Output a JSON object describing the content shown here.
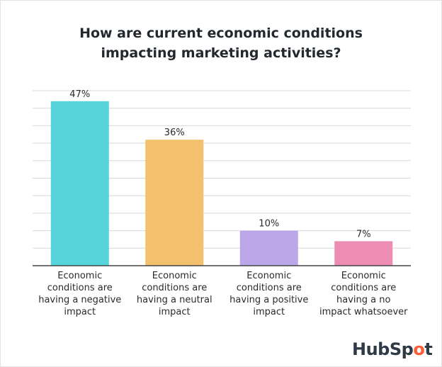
{
  "title_lines": [
    "How are current economic conditions",
    "impacting marketing activities?"
  ],
  "brand": {
    "prefix": "HubSp",
    "o": "o",
    "suffix": "t"
  },
  "colors": {
    "gridline": "#d9d9d9",
    "axis": "#444444",
    "text": "#2a2a2a",
    "brand_accent": "#ff5c35"
  },
  "chart_data": {
    "type": "bar",
    "title": "How are current economic conditions impacting marketing activities?",
    "categories": [
      "Economic conditions are having a negative impact",
      "Economic conditions are having a neutral impact",
      "Economic conditions are having a positive impact",
      "Economic conditions are having a no impact whatsoever"
    ],
    "category_lines": [
      [
        "Economic",
        "conditions are",
        "having a negative",
        "impact"
      ],
      [
        "Economic",
        "conditions are",
        "having a neutral",
        "impact"
      ],
      [
        "Economic",
        "conditions are",
        "having a positive",
        "impact"
      ],
      [
        "Economic",
        "conditions are",
        "having a no",
        "impact whatsoever"
      ]
    ],
    "values": [
      47,
      36,
      10,
      7
    ],
    "data_labels": [
      "47%",
      "36%",
      "10%",
      "7%"
    ],
    "colors": [
      "#55d4db",
      "#f3c06e",
      "#bba6e9",
      "#ee8db3"
    ],
    "ylim": [
      0,
      50
    ],
    "grid": true,
    "y_tick_labels_shown": false,
    "xlabel": "",
    "ylabel": ""
  }
}
